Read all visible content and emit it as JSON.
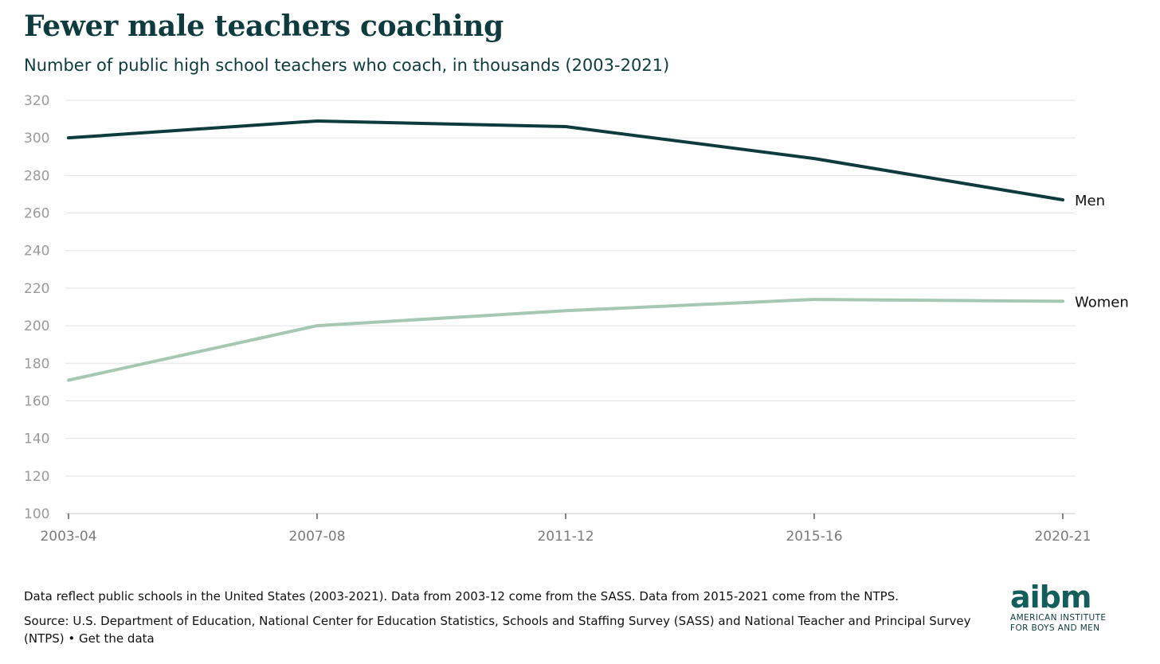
{
  "header": {
    "title": "Fewer male teachers coaching",
    "subtitle": "Number of public high school teachers who coach, in thousands (2003-2021)"
  },
  "footer": {
    "note": "Data reflect public schools in the United States (2003-2021). Data from 2003-12 come from the SASS. Data from 2015-2021 come from the NTPS.",
    "source_prefix": "Source: ",
    "source_text": "U.S. Department of Education, National Center for Education Statistics, Schools and Staffing Survey (SASS) and National Teacher and Principal Survey (NTPS)",
    "separator": " • ",
    "link_label": "Get the data"
  },
  "logo": {
    "mark": "aibm",
    "line1": "AMERICAN INSTITUTE",
    "line2": "FOR BOYS AND MEN"
  },
  "colors": {
    "men": "#0d3b3e",
    "women": "#a5c8b3",
    "grid": "#e3e3e3",
    "tick": "#9a9a9a"
  },
  "chart_data": {
    "type": "line",
    "categories": [
      "2003-04",
      "2007-08",
      "2011-12",
      "2015-16",
      "2020-21"
    ],
    "series": [
      {
        "name": "Men",
        "values": [
          300,
          309,
          306,
          289,
          267
        ]
      },
      {
        "name": "Women",
        "values": [
          171,
          200,
          208,
          214,
          213
        ]
      }
    ],
    "ylim": [
      100,
      320
    ],
    "yticks": [
      100,
      120,
      140,
      160,
      180,
      200,
      220,
      240,
      260,
      280,
      300,
      320
    ],
    "grid": true,
    "legend": "direct-labels-right"
  }
}
